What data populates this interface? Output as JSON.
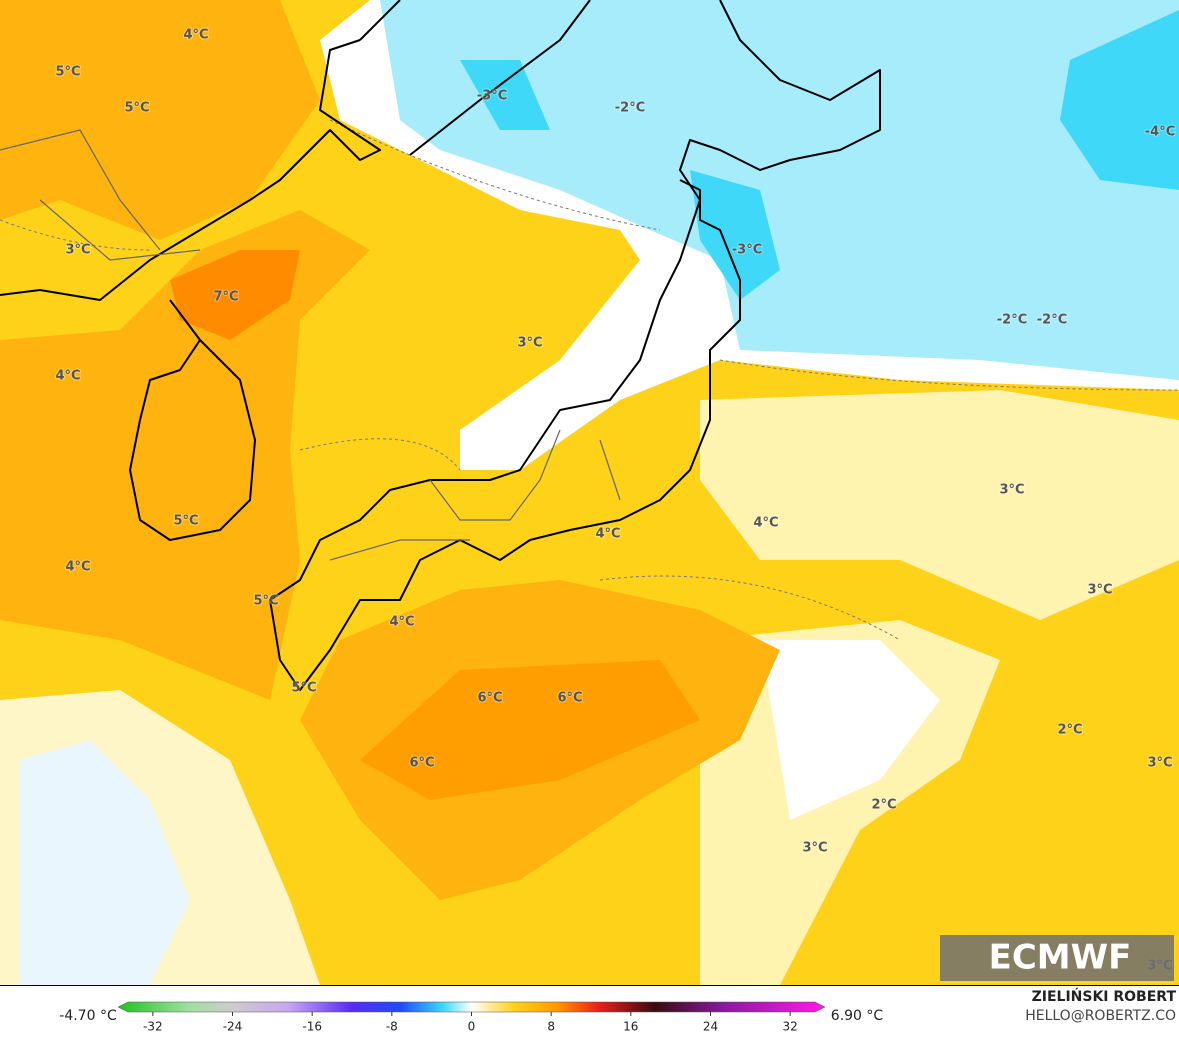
{
  "map": {
    "contour_labels": [
      "4°C",
      "5°C",
      "5°C",
      "-3°C",
      "-2°C",
      "-4°C",
      "3°C",
      "-3°C",
      "7°C",
      "-2°C",
      "-2°C",
      "3°C",
      "4°C",
      "3°C",
      "4°C",
      "5°C",
      "4°C",
      "4°C",
      "3°C",
      "5°C",
      "4°C",
      "6°C",
      "6°C",
      "5°C",
      "2°C",
      "6°C",
      "3°C",
      "2°C",
      "3°C",
      "3°C"
    ],
    "logo": "ECMWF"
  },
  "colorbar": {
    "min_label": "-4.70 °C",
    "max_label": "6.90 °C",
    "lim": [
      -35.5,
      35.5
    ],
    "ticks": [
      -32,
      -24,
      -16,
      -8,
      0,
      8,
      16,
      24,
      32
    ]
  },
  "credits": {
    "author": "ZIELIŃSKI ROBERT",
    "contact": "HELLO@ROBERTZ.CO"
  }
}
